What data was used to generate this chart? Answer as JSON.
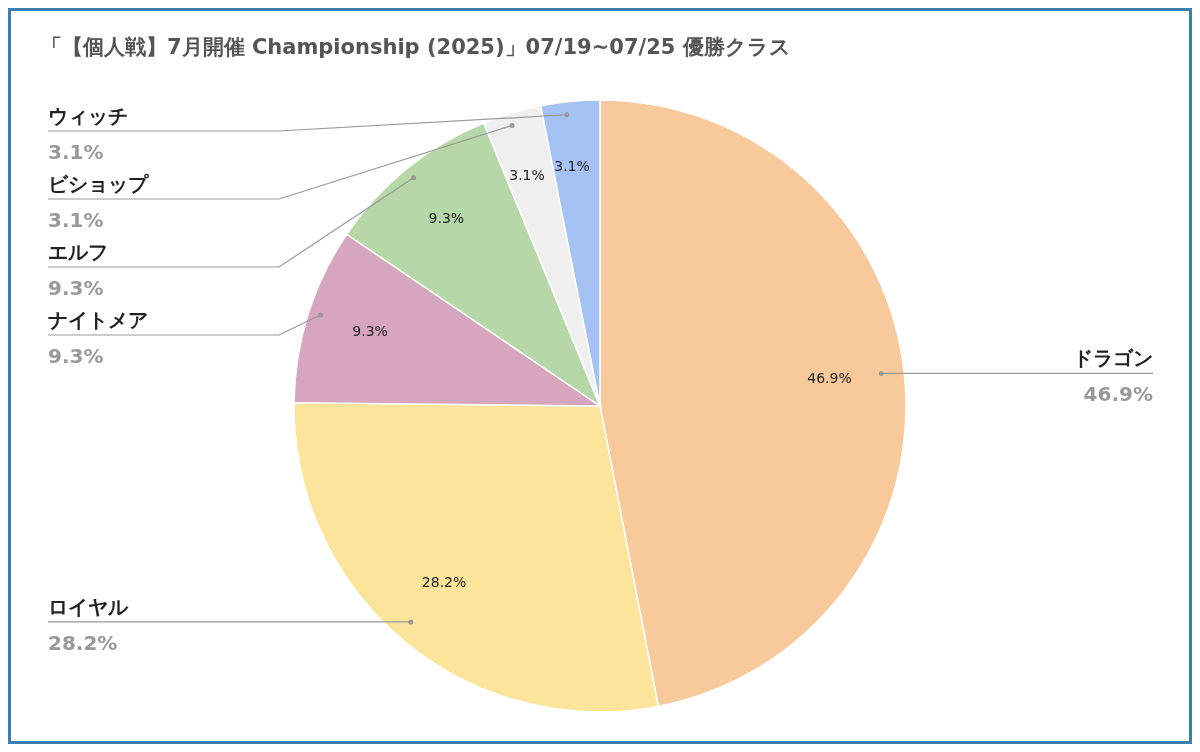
{
  "chart_data": {
    "type": "pie",
    "title": "「【個人戦】7月開催 Championship (2025)」07/19~07/25 優勝クラス",
    "categories": [
      "ドラゴン",
      "ロイヤル",
      "ナイトメア",
      "エルフ",
      "ビショップ",
      "ウィッチ"
    ],
    "values": [
      46.9,
      28.2,
      9.3,
      9.3,
      3.1,
      3.1
    ],
    "value_labels": [
      "46.9%",
      "28.2%",
      "9.3%",
      "9.3%",
      "3.1%",
      "3.1%"
    ],
    "colors": [
      "#f8c99b",
      "#fde49b",
      "#d5a6bd",
      "#b6d7a8",
      "#efefef",
      "#a4c2f4"
    ]
  }
}
